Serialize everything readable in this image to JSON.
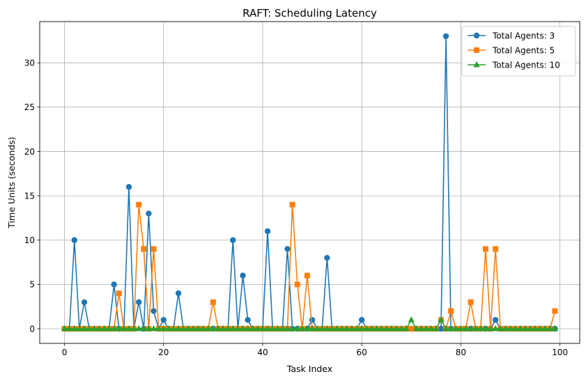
{
  "chart_data": {
    "type": "line",
    "title": "RAFT: Scheduling Latency",
    "xlabel": "Task Index",
    "ylabel": "Time Units (seconds)",
    "xlim": [
      -5,
      104
    ],
    "ylim": [
      -1.65,
      34.65
    ],
    "xticks": [
      0,
      20,
      40,
      60,
      80,
      100
    ],
    "yticks": [
      0,
      5,
      10,
      15,
      20,
      25,
      30
    ],
    "grid": true,
    "legend_position": "top-right",
    "x": [
      0,
      1,
      2,
      3,
      4,
      5,
      6,
      7,
      8,
      9,
      10,
      11,
      12,
      13,
      14,
      15,
      16,
      17,
      18,
      19,
      20,
      21,
      22,
      23,
      24,
      25,
      26,
      27,
      28,
      29,
      30,
      31,
      32,
      33,
      34,
      35,
      36,
      37,
      38,
      39,
      40,
      41,
      42,
      43,
      44,
      45,
      46,
      47,
      48,
      49,
      50,
      51,
      52,
      53,
      54,
      55,
      56,
      57,
      58,
      59,
      60,
      61,
      62,
      63,
      64,
      65,
      66,
      67,
      68,
      69,
      70,
      71,
      72,
      73,
      74,
      75,
      76,
      77,
      78,
      79,
      80,
      81,
      82,
      83,
      84,
      85,
      86,
      87,
      88,
      89,
      90,
      91,
      92,
      93,
      94,
      95,
      96,
      97,
      98,
      99
    ],
    "series": [
      {
        "name": "Total Agents: 3",
        "color": "#1f77b4",
        "marker": "circle",
        "values": [
          0,
          0,
          10,
          0,
          3,
          0,
          0,
          0,
          0,
          0,
          5,
          0,
          0,
          16,
          0,
          3,
          0,
          13,
          2,
          0,
          1,
          0,
          0,
          4,
          0,
          0,
          0,
          0,
          0,
          0,
          0,
          0,
          0,
          0,
          10,
          0,
          6,
          1,
          0,
          0,
          0,
          11,
          0,
          0,
          0,
          9,
          0,
          0,
          0,
          0,
          1,
          0,
          0,
          8,
          0,
          0,
          0,
          0,
          0,
          0,
          1,
          0,
          0,
          0,
          0,
          0,
          0,
          0,
          0,
          0,
          0,
          0,
          0,
          0,
          0,
          0,
          0,
          33,
          0,
          0,
          0,
          0,
          0,
          0,
          0,
          0,
          0,
          1,
          0,
          0,
          0,
          0,
          0,
          0,
          0,
          0,
          0,
          0,
          0,
          0
        ]
      },
      {
        "name": "Total Agents: 5",
        "color": "#ff7f0e",
        "marker": "square",
        "values": [
          0,
          0,
          0,
          0,
          0,
          0,
          0,
          0,
          0,
          0,
          0,
          4,
          0,
          0,
          0,
          14,
          9,
          0,
          9,
          0,
          0,
          0,
          0,
          0,
          0,
          0,
          0,
          0,
          0,
          0,
          3,
          0,
          0,
          0,
          0,
          0,
          0,
          0,
          0,
          0,
          0,
          0,
          0,
          0,
          0,
          0,
          14,
          5,
          0,
          6,
          0,
          0,
          0,
          0,
          0,
          0,
          0,
          0,
          0,
          0,
          0,
          0,
          0,
          0,
          0,
          0,
          0,
          0,
          0,
          0,
          0,
          0,
          0,
          0,
          0,
          0,
          1,
          0,
          2,
          0,
          0,
          0,
          3,
          0,
          0,
          9,
          0,
          9,
          0,
          0,
          0,
          0,
          0,
          0,
          0,
          0,
          0,
          0,
          0,
          2
        ]
      },
      {
        "name": "Total Agents: 10",
        "color": "#2ca02c",
        "marker": "triangle",
        "values": [
          0,
          0,
          0,
          0,
          0,
          0,
          0,
          0,
          0,
          0,
          0,
          0,
          0,
          0,
          0,
          0,
          0,
          0,
          0,
          0,
          0,
          0,
          0,
          0,
          0,
          0,
          0,
          0,
          0,
          0,
          0,
          0,
          0,
          0,
          0,
          0,
          0,
          0,
          0,
          0,
          0,
          0,
          0,
          0,
          0,
          0,
          0,
          0,
          0,
          0,
          0,
          0,
          0,
          0,
          0,
          0,
          0,
          0,
          0,
          0,
          0,
          0,
          0,
          0,
          0,
          0,
          0,
          0,
          0,
          0,
          1,
          0,
          0,
          0,
          0,
          0,
          1,
          0,
          0,
          0,
          0,
          0,
          0,
          0,
          0,
          0,
          0,
          0,
          0,
          0,
          0,
          0,
          0,
          0,
          0,
          0,
          0,
          0,
          0,
          0
        ]
      }
    ]
  }
}
